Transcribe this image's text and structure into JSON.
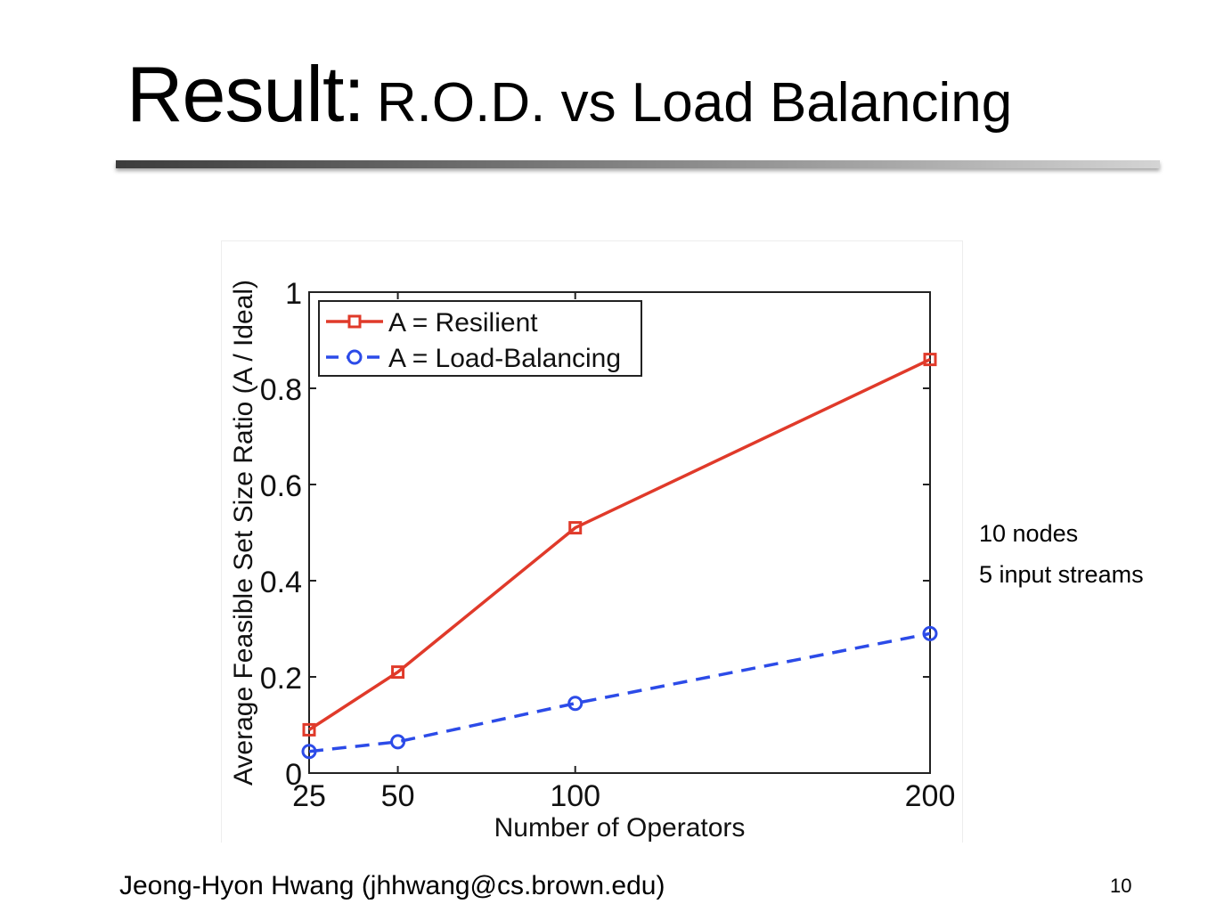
{
  "slide": {
    "title_main": "Result:",
    "title_sub": "R.O.D. vs Load Balancing",
    "notes": [
      "10 nodes",
      "5 input streams"
    ],
    "author": "Jeong-Hyon Hwang (jhhwang@cs.brown.edu)",
    "page_number": "10"
  },
  "chart_data": {
    "type": "line",
    "title": "",
    "xlabel": "Number of Operators",
    "ylabel": "Average Feasible Set Size Ratio (A / Ideal)",
    "x": [
      25,
      50,
      100,
      200
    ],
    "x_tick_labels": [
      "25",
      "50",
      "100",
      "200"
    ],
    "xlim": [
      25,
      200
    ],
    "ylim": [
      0,
      1
    ],
    "y_ticks": [
      0,
      0.2,
      0.4,
      0.6,
      0.8,
      1
    ],
    "y_tick_labels": [
      "0",
      "0.2",
      "0.4",
      "0.6",
      "0.8",
      "1"
    ],
    "grid": false,
    "legend_position": "top-left",
    "series": [
      {
        "name": "A = Resilient",
        "values": [
          0.09,
          0.21,
          0.51,
          0.86
        ],
        "color": "#e03a2a",
        "marker": "square",
        "line_style": "solid"
      },
      {
        "name": "A = Load-Balancing",
        "values": [
          0.045,
          0.065,
          0.145,
          0.29
        ],
        "color": "#2c4be8",
        "marker": "circle",
        "line_style": "dashed"
      }
    ]
  }
}
